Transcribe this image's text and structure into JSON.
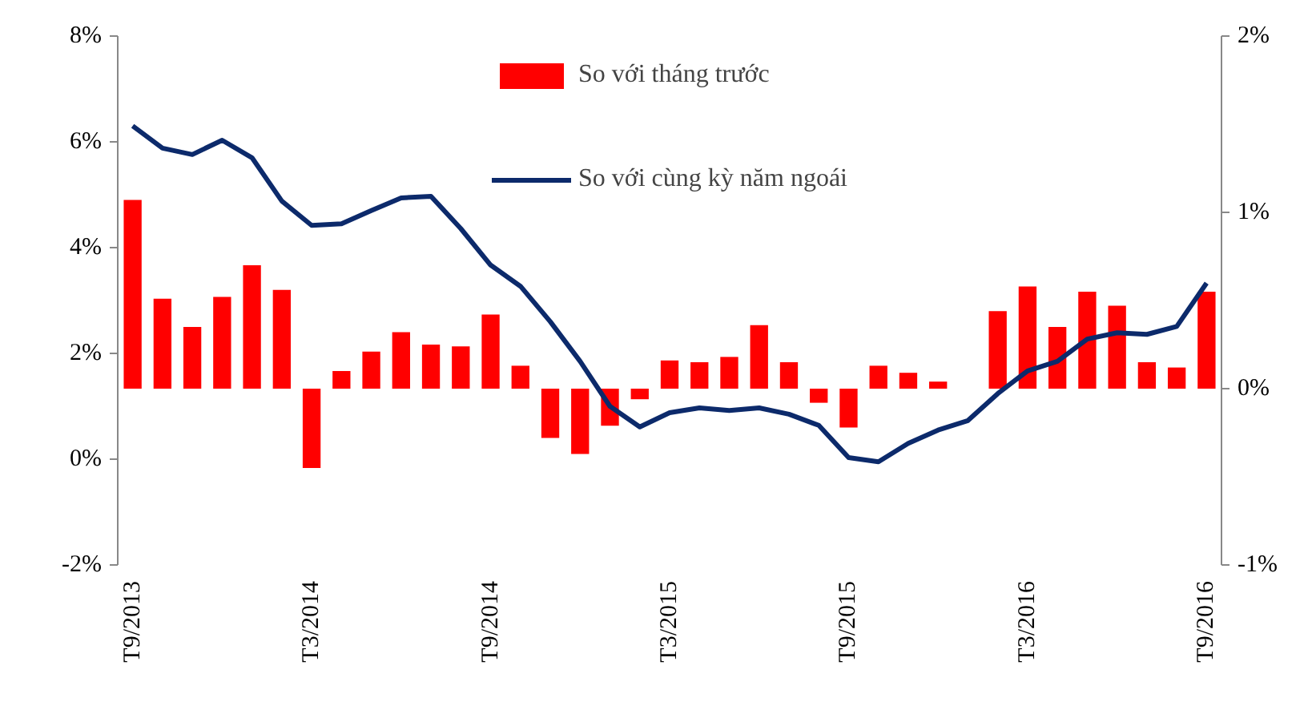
{
  "chart_data": {
    "type": "bar",
    "categories": [
      "T9/2013",
      null,
      null,
      null,
      null,
      null,
      "T3/2014",
      null,
      null,
      null,
      null,
      null,
      "T9/2014",
      null,
      null,
      null,
      null,
      null,
      "T3/2015",
      null,
      null,
      null,
      null,
      null,
      "T9/2015",
      null,
      null,
      null,
      null,
      null,
      "T3/2016",
      null,
      null,
      null,
      null,
      null,
      "T9/2016"
    ],
    "series": [
      {
        "name": "So với tháng trước",
        "axis": "y2",
        "color": "#ff0000",
        "values": [
          1.07,
          0.51,
          0.35,
          0.52,
          0.7,
          0.56,
          -0.45,
          0.1,
          0.21,
          0.32,
          0.25,
          0.24,
          0.42,
          0.13,
          -0.28,
          -0.37,
          -0.21,
          -0.06,
          0.16,
          0.15,
          0.18,
          0.36,
          0.15,
          -0.08,
          -0.22,
          0.13,
          0.09,
          0.04,
          0,
          0.44,
          0.58,
          0.35,
          0.55,
          0.47,
          0.15,
          0.12,
          0.55
        ]
      },
      {
        "name": "So với cùng kỳ năm ngoái",
        "type": "line",
        "color": "#0c2a6b",
        "values": [
          6.3,
          5.88,
          5.76,
          6.03,
          5.7,
          4.88,
          4.42,
          4.45,
          4.7,
          4.94,
          4.97,
          4.36,
          3.67,
          3.27,
          2.6,
          1.85,
          1.0,
          0.61,
          0.88,
          0.97,
          0.92,
          0.97,
          0.85,
          0.64,
          0.03,
          -0.05,
          0.3,
          0.55,
          0.73,
          1.24,
          1.67,
          1.85,
          2.27,
          2.39,
          2.36,
          2.51,
          3.33
        ]
      }
    ],
    "ylim": [
      -2,
      8
    ],
    "yticks": [
      {
        "value": -2,
        "label": "-2%"
      },
      {
        "value": 0,
        "label": "0%"
      },
      {
        "value": 2,
        "label": "2%"
      },
      {
        "value": 4,
        "label": "4%"
      },
      {
        "value": 6,
        "label": "6%"
      },
      {
        "value": 8,
        "label": "8%"
      }
    ],
    "y2lim": [
      -1,
      2
    ],
    "y2ticks": [
      {
        "value": -1,
        "label": "-1%"
      },
      {
        "value": 0,
        "label": "0%"
      },
      {
        "value": 1,
        "label": "1%"
      },
      {
        "value": 2,
        "label": "2%"
      }
    ],
    "legend": "top",
    "line_style": "solid"
  }
}
